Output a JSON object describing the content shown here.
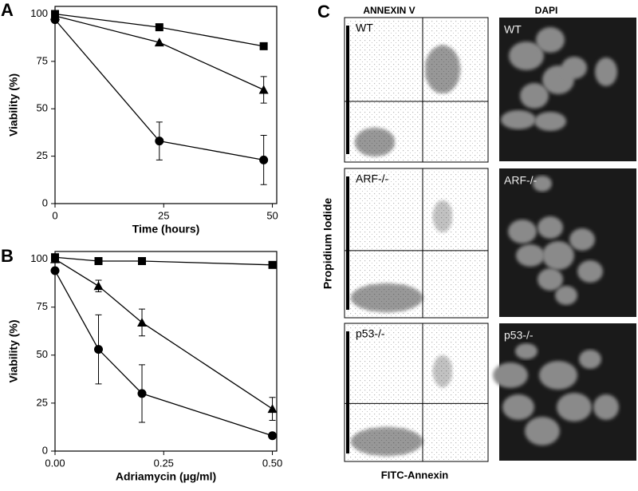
{
  "chart_data": [
    {
      "type": "line",
      "panel": "A",
      "x_label": "Time (hours)",
      "y_label": "Viability (%)",
      "x": [
        0,
        24,
        48
      ],
      "xlim": [
        0,
        51
      ],
      "ylim": [
        0,
        104
      ],
      "xticks": [
        0,
        25,
        50
      ],
      "yticks": [
        0,
        25,
        50,
        75,
        100
      ],
      "color": "#000000",
      "series": [
        {
          "marker": "square",
          "values": [
            100,
            93,
            83
          ],
          "errors": [
            null,
            null,
            null
          ]
        },
        {
          "marker": "triangle",
          "values": [
            99,
            85,
            60
          ],
          "errors": [
            null,
            null,
            7
          ]
        },
        {
          "marker": "circle",
          "values": [
            97,
            33,
            23
          ],
          "errors": [
            null,
            10,
            13
          ]
        }
      ]
    },
    {
      "type": "line",
      "panel": "B",
      "x_label": "Adriamycin (µg/ml)",
      "y_label": "Viability (%)",
      "x": [
        0,
        0.1,
        0.2,
        0.5
      ],
      "xlim": [
        0,
        0.51
      ],
      "ylim": [
        0,
        104
      ],
      "xticks": [
        {
          "value": 0,
          "label": "0.00"
        },
        {
          "value": 0.25,
          "label": "0.25"
        },
        {
          "value": 0.5,
          "label": "0.50"
        }
      ],
      "yticks": [
        0,
        25,
        50,
        75,
        100
      ],
      "color": "#000000",
      "series": [
        {
          "marker": "square",
          "values": [
            101,
            99,
            99,
            97
          ],
          "errors": [
            null,
            null,
            null,
            null
          ]
        },
        {
          "marker": "triangle",
          "values": [
            100,
            86,
            67,
            22
          ],
          "errors": [
            null,
            3,
            7,
            6
          ]
        },
        {
          "marker": "circle",
          "values": [
            94,
            53,
            30,
            8
          ],
          "errors": [
            null,
            18,
            15,
            null
          ]
        }
      ]
    }
  ],
  "panel_c": {
    "letter": "C",
    "left_header": "ANNEXIN V",
    "right_header": "DAPI",
    "y_label": "Propidium Iodide",
    "x_label": "FITC-Annexin",
    "rows": [
      "WT",
      "ARF-/-",
      "p53-/-"
    ]
  }
}
